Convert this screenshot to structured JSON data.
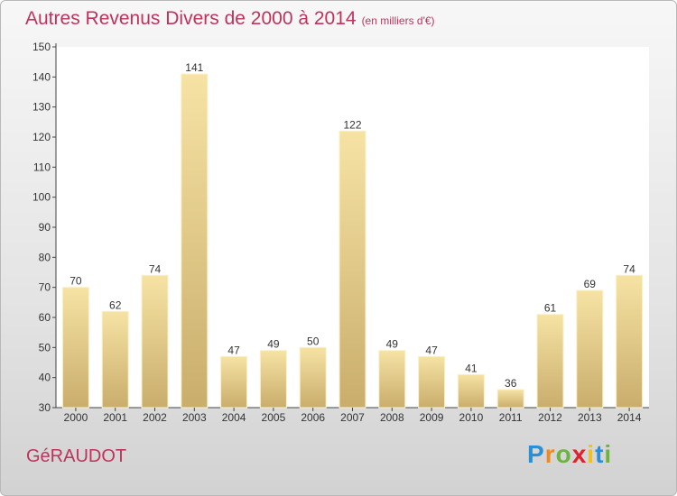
{
  "title": "Autres Revenus Divers de 2000 à 2014",
  "subtitle": "(en milliers d'€)",
  "commune": "GéRAUDOT",
  "logo": {
    "letters": [
      "P",
      "r",
      "o",
      "x",
      "i",
      "t",
      "i"
    ],
    "colors": [
      "#2a8fd6",
      "#f08a1c",
      "#6cb33f",
      "#e0202a",
      "#f0c020",
      "#2a8fd6",
      "#6cb33f"
    ]
  },
  "colors": {
    "bar_light": "#f6e3a4",
    "bar_dark": "#c9ad6c",
    "title": "#c0325c"
  },
  "chart_data": {
    "type": "bar",
    "categories": [
      "2000",
      "2001",
      "2002",
      "2003",
      "2004",
      "2005",
      "2006",
      "2007",
      "2008",
      "2009",
      "2010",
      "2011",
      "2012",
      "2013",
      "2014"
    ],
    "values": [
      70,
      62,
      74,
      141,
      47,
      49,
      50,
      122,
      49,
      47,
      41,
      36,
      61,
      69,
      74
    ],
    "ylim": [
      30,
      150
    ],
    "yticks": [
      30,
      40,
      50,
      60,
      70,
      80,
      90,
      100,
      110,
      120,
      130,
      140,
      150
    ],
    "grid": false,
    "data_labels": true
  }
}
